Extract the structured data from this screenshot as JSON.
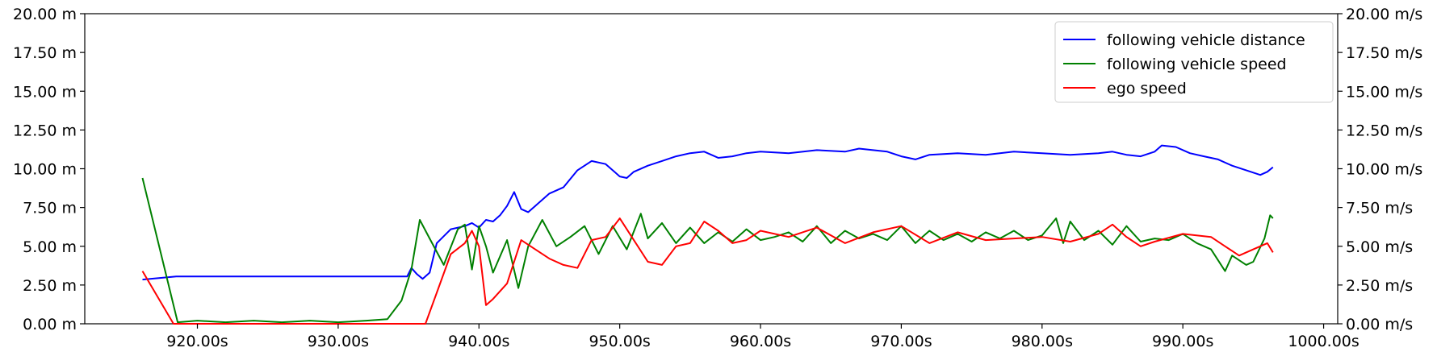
{
  "chart_data": {
    "type": "line",
    "title": "",
    "xlabel": "",
    "ylabel_left": "",
    "ylabel_right": "",
    "xlim": [
      912,
      1001
    ],
    "ylim_left": [
      0,
      20
    ],
    "ylim_right": [
      0,
      20
    ],
    "x_ticks": [
      920,
      930,
      940,
      950,
      960,
      970,
      980,
      990,
      1000
    ],
    "x_tick_labels": [
      "920.00s",
      "930.00s",
      "940.00s",
      "950.00s",
      "960.00s",
      "970.00s",
      "980.00s",
      "990.00s",
      "1000.00s"
    ],
    "y_ticks": [
      0,
      2.5,
      5,
      7.5,
      10,
      12.5,
      15,
      17.5,
      20
    ],
    "y_left_tick_labels": [
      "0.00 m",
      "2.50 m",
      "5.00 m",
      "7.50 m",
      "10.00 m",
      "12.50 m",
      "15.00 m",
      "17.50 m",
      "20.00 m"
    ],
    "y_right_tick_labels": [
      "0.00 m/s",
      "2.50 m/s",
      "5.00 m/s",
      "7.50 m/s",
      "10.00 m/s",
      "12.50 m/s",
      "15.00 m/s",
      "17.50 m/s",
      "20.00 m/s"
    ],
    "grid": false,
    "legend_position": "top-right",
    "series": [
      {
        "name": "following vehicle distance",
        "color": "#0000ff",
        "axis": "left",
        "x": [
          916.1,
          918.5,
          920,
          925,
          930,
          934.9,
          935.2,
          935.6,
          936.0,
          936.5,
          937.0,
          938.0,
          939.0,
          939.5,
          940.0,
          940.5,
          941.0,
          941.5,
          942.0,
          942.5,
          943.0,
          943.5,
          944.0,
          945.0,
          946.0,
          947.0,
          948.0,
          949.0,
          950.0,
          950.5,
          951.0,
          952.0,
          953.0,
          954.0,
          955.0,
          956.0,
          957.0,
          958.0,
          959.0,
          960.0,
          962.0,
          964.0,
          966.0,
          967.0,
          968.0,
          969.0,
          970.0,
          971.0,
          972.0,
          974.0,
          976.0,
          978.0,
          980.0,
          982.0,
          984.0,
          985.0,
          986.0,
          987.0,
          988.0,
          988.5,
          989.5,
          990.5,
          991.5,
          992.5,
          993.5,
          994.5,
          995.5,
          996.0,
          996.4
        ],
        "values": [
          2.85,
          3.05,
          3.05,
          3.05,
          3.05,
          3.05,
          3.6,
          3.2,
          2.9,
          3.3,
          5.2,
          6.1,
          6.3,
          6.5,
          6.2,
          6.7,
          6.6,
          7.0,
          7.6,
          8.5,
          7.4,
          7.2,
          7.6,
          8.4,
          8.8,
          9.9,
          10.5,
          10.3,
          9.5,
          9.4,
          9.8,
          10.2,
          10.5,
          10.8,
          11.0,
          11.1,
          10.7,
          10.8,
          11.0,
          11.1,
          11.0,
          11.2,
          11.1,
          11.3,
          11.2,
          11.1,
          10.8,
          10.6,
          10.9,
          11.0,
          10.9,
          11.1,
          11.0,
          10.9,
          11.0,
          11.1,
          10.9,
          10.8,
          11.1,
          11.5,
          11.4,
          11.0,
          10.8,
          10.6,
          10.2,
          9.9,
          9.6,
          9.8,
          10.1
        ]
      },
      {
        "name": "following vehicle speed",
        "color": "#008000",
        "axis": "right",
        "x": [
          916.1,
          918.6,
          920,
          922,
          924,
          926,
          928,
          930,
          932,
          933.5,
          934.5,
          935.2,
          935.8,
          936.5,
          937.5,
          938.5,
          939.0,
          939.5,
          940.0,
          940.5,
          941.0,
          942.0,
          942.8,
          943.5,
          944.5,
          945.5,
          946.5,
          947.5,
          948.5,
          949.5,
          950.5,
          951.5,
          952.0,
          953.0,
          954.0,
          955.0,
          956.0,
          957.0,
          958.0,
          959.0,
          960.0,
          961.0,
          962.0,
          963.0,
          964.0,
          965.0,
          966.0,
          967.0,
          968.0,
          969.0,
          970.0,
          971.0,
          972.0,
          973.0,
          974.0,
          975.0,
          976.0,
          977.0,
          978.0,
          979.0,
          980.0,
          981.0,
          981.5,
          982.0,
          983.0,
          984.0,
          985.0,
          986.0,
          987.0,
          988.0,
          989.0,
          990.0,
          991.0,
          992.0,
          993.0,
          993.5,
          994.5,
          995.0,
          995.8,
          996.2,
          996.4
        ],
        "values": [
          9.4,
          0.1,
          0.2,
          0.1,
          0.2,
          0.1,
          0.2,
          0.1,
          0.2,
          0.3,
          1.5,
          3.5,
          6.7,
          5.5,
          3.8,
          6.1,
          6.4,
          3.5,
          6.3,
          5.0,
          3.3,
          5.4,
          2.3,
          5.0,
          6.7,
          5.0,
          5.6,
          6.3,
          4.5,
          6.3,
          4.8,
          7.1,
          5.5,
          6.5,
          5.2,
          6.2,
          5.2,
          5.9,
          5.3,
          6.1,
          5.4,
          5.6,
          5.9,
          5.3,
          6.3,
          5.2,
          6.0,
          5.5,
          5.8,
          5.4,
          6.3,
          5.2,
          6.0,
          5.4,
          5.8,
          5.3,
          5.9,
          5.5,
          6.0,
          5.4,
          5.7,
          6.8,
          5.2,
          6.6,
          5.4,
          6.0,
          5.1,
          6.3,
          5.3,
          5.5,
          5.4,
          5.8,
          5.2,
          4.8,
          3.4,
          4.4,
          3.8,
          4.0,
          5.5,
          7.0,
          6.8
        ]
      },
      {
        "name": "ego speed",
        "color": "#ff0000",
        "axis": "right",
        "x": [
          916.1,
          918.3,
          920,
          925,
          930,
          935,
          936.2,
          937.0,
          938.0,
          939.0,
          939.5,
          940.0,
          940.5,
          941.0,
          942.0,
          943.0,
          944.0,
          945.0,
          946.0,
          947.0,
          948.0,
          949.0,
          950.0,
          951.0,
          952.0,
          953.0,
          954.0,
          955.0,
          956.0,
          957.0,
          958.0,
          959.0,
          960.0,
          962.0,
          964.0,
          966.0,
          968.0,
          970.0,
          972.0,
          974.0,
          976.0,
          978.0,
          980.0,
          982.0,
          984.0,
          985.0,
          986.0,
          987.0,
          988.0,
          990.0,
          992.0,
          993.0,
          994.0,
          995.0,
          996.0,
          996.4
        ],
        "values": [
          3.4,
          0.0,
          0.0,
          0.0,
          0.0,
          0.0,
          0.0,
          2.0,
          4.5,
          5.2,
          6.0,
          5.0,
          1.2,
          1.6,
          2.6,
          5.4,
          4.8,
          4.2,
          3.8,
          3.6,
          5.4,
          5.6,
          6.8,
          5.4,
          4.0,
          3.8,
          5.0,
          5.2,
          6.6,
          6.0,
          5.2,
          5.4,
          6.0,
          5.6,
          6.2,
          5.2,
          5.9,
          6.3,
          5.2,
          5.9,
          5.4,
          5.5,
          5.6,
          5.3,
          5.8,
          6.4,
          5.6,
          5.0,
          5.3,
          5.8,
          5.6,
          5.0,
          4.4,
          4.8,
          5.2,
          4.6
        ]
      }
    ]
  }
}
